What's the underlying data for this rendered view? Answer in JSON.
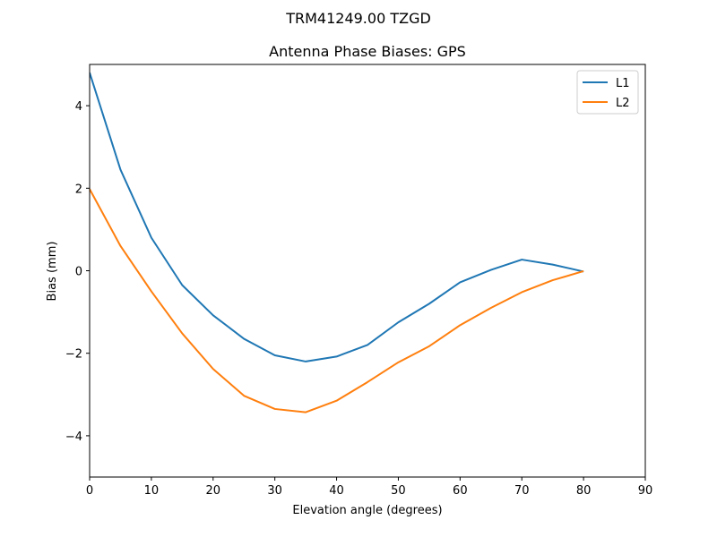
{
  "figure": {
    "suptitle": "TRM41249.00      TZGD"
  },
  "chart_data": {
    "type": "line",
    "title": "Antenna Phase Biases: GPS",
    "xlabel": "Elevation angle (degrees)",
    "ylabel": "Bias (mm)",
    "xlim": [
      0,
      90
    ],
    "ylim": [
      -5,
      5
    ],
    "xticks": [
      0,
      10,
      20,
      30,
      40,
      50,
      60,
      70,
      80,
      90
    ],
    "yticks": [
      -4,
      -2,
      0,
      2,
      4
    ],
    "ytick_labels": [
      "−4",
      "−2",
      "0",
      "2",
      "4"
    ],
    "grid": false,
    "legend_position": "top-right",
    "x": [
      0,
      5,
      10,
      15,
      20,
      25,
      30,
      35,
      40,
      45,
      50,
      55,
      60,
      65,
      70,
      75,
      80
    ],
    "series": [
      {
        "name": "L1",
        "color": "#1f77b4",
        "values": [
          4.8,
          2.45,
          0.8,
          -0.35,
          -1.08,
          -1.65,
          -2.05,
          -2.2,
          -2.08,
          -1.8,
          -1.25,
          -0.8,
          -0.28,
          0.02,
          0.27,
          0.15,
          -0.02
        ]
      },
      {
        "name": "L2",
        "color": "#ff7f0e",
        "values": [
          1.98,
          0.6,
          -0.5,
          -1.52,
          -2.38,
          -3.03,
          -3.35,
          -3.43,
          -3.15,
          -2.7,
          -2.22,
          -1.83,
          -1.32,
          -0.9,
          -0.52,
          -0.23,
          -0.01
        ]
      }
    ]
  }
}
